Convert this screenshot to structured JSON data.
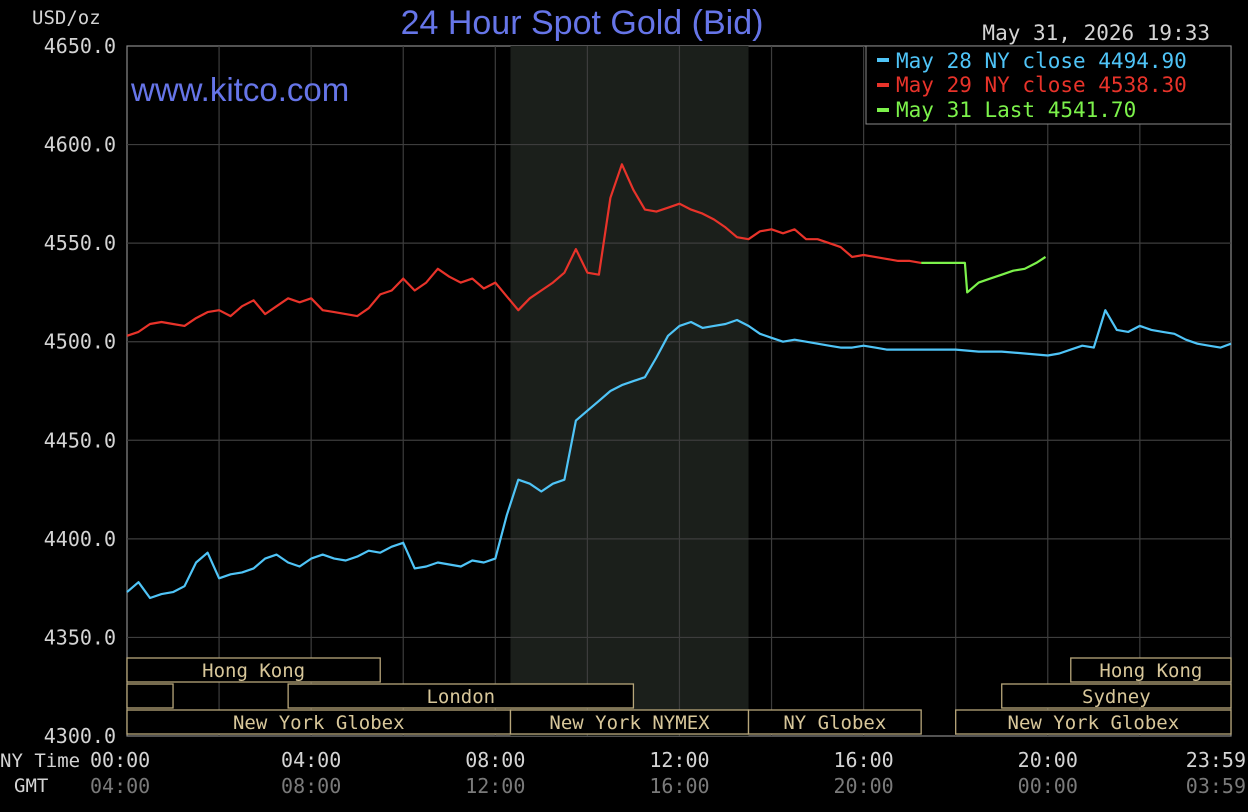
{
  "header": {
    "unit_label": "USD/oz",
    "title": "24 Hour Spot Gold (Bid)",
    "timestamp": "May 31, 2026 19:33",
    "watermark": "www.kitco.com"
  },
  "legend": [
    {
      "text": "May 28 NY close 4494.90",
      "color": "#4fc4f7"
    },
    {
      "text": "May 29 NY close 4538.30",
      "color": "#e8332a"
    },
    {
      "text": "May 31 Last 4541.70",
      "color": "#7cf24b"
    }
  ],
  "axis_rows": {
    "ny_label": "NY Time",
    "gmt_label": "GMT"
  },
  "sessions": [
    {
      "label": "Hong Kong",
      "start": 0,
      "end": 5.5,
      "row": 0
    },
    {
      "label": "",
      "start": 0,
      "end": 1,
      "row": 1
    },
    {
      "label": "London",
      "start": 3.5,
      "end": 11,
      "row": 1
    },
    {
      "label": "New York Globex",
      "start": 0,
      "end": 8.33,
      "row": 2
    },
    {
      "label": "New York NYMEX",
      "start": 8.33,
      "end": 13.5,
      "row": 2
    },
    {
      "label": "NY Globex",
      "start": 13.5,
      "end": 17.25,
      "row": 2
    },
    {
      "label": "Hong Kong",
      "start": 20.5,
      "end": 23.98,
      "row": 0
    },
    {
      "label": "Sydney",
      "start": 19,
      "end": 23.98,
      "row": 1
    },
    {
      "label": "New York Globex",
      "start": 18,
      "end": 23.98,
      "row": 2
    }
  ],
  "chart_data": {
    "type": "line",
    "title": "24 Hour Spot Gold (Bid)",
    "ylabel": "USD/oz",
    "ylim": [
      4300,
      4650
    ],
    "xlim": [
      0,
      23.98
    ],
    "yticks": [
      "4300.0",
      "4350.0",
      "4400.0",
      "4450.0",
      "4500.0",
      "4550.0",
      "4600.0",
      "4650.0"
    ],
    "xticks_ny": [
      "00:00",
      "04:00",
      "08:00",
      "12:00",
      "16:00",
      "20:00",
      "23:59"
    ],
    "xticks_gmt": [
      "04:00",
      "08:00",
      "12:00",
      "16:00",
      "20:00",
      "00:00",
      "03:59"
    ],
    "shaded_range": [
      8.33,
      13.5
    ],
    "series": [
      {
        "name": "May 28 NY close 4494.90",
        "color": "#4fc4f7",
        "x": [
          0,
          0.25,
          0.5,
          0.75,
          1.0,
          1.25,
          1.5,
          1.75,
          2.0,
          2.25,
          2.5,
          2.75,
          3.0,
          3.25,
          3.5,
          3.75,
          4.0,
          4.25,
          4.5,
          4.75,
          5.0,
          5.25,
          5.5,
          5.75,
          6.0,
          6.25,
          6.5,
          6.75,
          7.0,
          7.25,
          7.5,
          7.75,
          8.0,
          8.25,
          8.5,
          8.75,
          9.0,
          9.25,
          9.5,
          9.75,
          10.0,
          10.25,
          10.5,
          10.75,
          11.0,
          11.25,
          11.5,
          11.75,
          12.0,
          12.25,
          12.5,
          12.75,
          13.0,
          13.25,
          13.5,
          13.75,
          14.0,
          14.25,
          14.5,
          14.75,
          15.0,
          15.25,
          15.5,
          15.75,
          16.0,
          16.25,
          16.5,
          16.75,
          17.0,
          17.5,
          18.0,
          18.5,
          19.0,
          19.5,
          20.0,
          20.25,
          20.5,
          20.75,
          21.0,
          21.25,
          21.5,
          21.75,
          22.0,
          22.25,
          22.5,
          22.75,
          23.0,
          23.25,
          23.5,
          23.75,
          23.98
        ],
        "values": [
          4373,
          4378,
          4370,
          4372,
          4373,
          4376,
          4388,
          4393,
          4380,
          4382,
          4383,
          4385,
          4390,
          4392,
          4388,
          4386,
          4390,
          4392,
          4390,
          4389,
          4391,
          4394,
          4393,
          4396,
          4398,
          4385,
          4386,
          4388,
          4387,
          4386,
          4389,
          4388,
          4390,
          4412,
          4430,
          4428,
          4424,
          4428,
          4430,
          4460,
          4465,
          4470,
          4475,
          4478,
          4480,
          4482,
          4492,
          4503,
          4508,
          4510,
          4507,
          4508,
          4509,
          4511,
          4508,
          4504,
          4502,
          4500,
          4501,
          4500,
          4499,
          4498,
          4497,
          4497,
          4498,
          4497,
          4496,
          4496,
          4496,
          4496,
          4496,
          4495,
          4495,
          4494,
          4493,
          4494,
          4496,
          4498,
          4497,
          4516,
          4506,
          4505,
          4508,
          4506,
          4505,
          4504,
          4501,
          4499,
          4498,
          4497,
          4499
        ]
      },
      {
        "name": "May 29 NY close 4538.30",
        "color": "#e8332a",
        "x": [
          0,
          0.25,
          0.5,
          0.75,
          1.0,
          1.25,
          1.5,
          1.75,
          2.0,
          2.25,
          2.5,
          2.75,
          3.0,
          3.25,
          3.5,
          3.75,
          4.0,
          4.25,
          4.5,
          4.75,
          5.0,
          5.25,
          5.5,
          5.75,
          6.0,
          6.25,
          6.5,
          6.75,
          7.0,
          7.25,
          7.5,
          7.75,
          8.0,
          8.25,
          8.5,
          8.75,
          9.0,
          9.25,
          9.5,
          9.75,
          10.0,
          10.25,
          10.5,
          10.75,
          11.0,
          11.25,
          11.5,
          11.75,
          12.0,
          12.25,
          12.5,
          12.75,
          13.0,
          13.25,
          13.5,
          13.75,
          14.0,
          14.25,
          14.5,
          14.75,
          15.0,
          15.25,
          15.5,
          15.75,
          16.0,
          16.25,
          16.5,
          16.75,
          17.0,
          17.25
        ],
        "values": [
          4503,
          4505,
          4509,
          4510,
          4509,
          4508,
          4512,
          4515,
          4516,
          4513,
          4518,
          4521,
          4514,
          4518,
          4522,
          4520,
          4522,
          4516,
          4515,
          4514,
          4513,
          4517,
          4524,
          4526,
          4532,
          4526,
          4530,
          4537,
          4533,
          4530,
          4532,
          4527,
          4530,
          4523,
          4516,
          4522,
          4526,
          4530,
          4535,
          4547,
          4535,
          4534,
          4573,
          4590,
          4577,
          4567,
          4566,
          4568,
          4570,
          4567,
          4565,
          4562,
          4558,
          4553,
          4552,
          4556,
          4557,
          4555,
          4557,
          4552,
          4552,
          4550,
          4548,
          4543,
          4544,
          4543,
          4542,
          4541,
          4541,
          4540
        ]
      },
      {
        "name": "May 31 Last 4541.70",
        "color": "#7cf24b",
        "x": [
          17.25,
          17.5,
          17.75,
          18.0,
          18.2,
          18.25,
          18.5,
          18.75,
          19.0,
          19.25,
          19.5,
          19.75,
          19.95
        ],
        "values": [
          4540,
          4540,
          4540,
          4540,
          4540,
          4525,
          4530,
          4532,
          4534,
          4536,
          4537,
          4540,
          4543
        ]
      }
    ]
  }
}
